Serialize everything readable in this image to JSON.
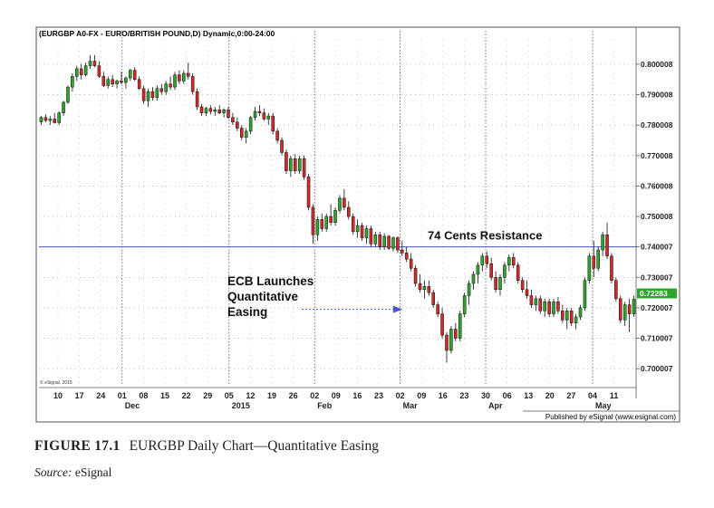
{
  "caption": {
    "figure_label": "FIGURE 17.1",
    "figure_title": "EURGBP Daily Chart—Quantitative Easing",
    "source_label": "Source:",
    "source_value": "eSignal"
  },
  "chart_data": {
    "type": "candlestick",
    "title": "(EURGBP A0-FX - EURO/BRITISH POUND,D) Dynamic,0:00-24:00",
    "credit": "© eSignal, 2015",
    "published_by": "Published by eSignal (www.esignal.com)",
    "price_label": "0.72283",
    "ylim": [
      0.695,
      0.808
    ],
    "yticks": [
      {
        "value": 0.8,
        "label": "0.800008"
      },
      {
        "value": 0.79,
        "label": "0.790008"
      },
      {
        "value": 0.78,
        "label": "0.780008"
      },
      {
        "value": 0.77,
        "label": "0.770008"
      },
      {
        "value": 0.76,
        "label": "0.760008"
      },
      {
        "value": 0.75,
        "label": "0.750008"
      },
      {
        "value": 0.74,
        "label": "0.740007"
      },
      {
        "value": 0.73,
        "label": "0.730007"
      },
      {
        "value": 0.72,
        "label": "0.720007"
      },
      {
        "value": 0.71,
        "label": "0.710007"
      },
      {
        "value": 0.7,
        "label": "0.700007"
      }
    ],
    "xticks": [
      "10",
      "17",
      "24",
      "01",
      "08",
      "15",
      "22",
      "29",
      "05",
      "12",
      "19",
      "26",
      "02",
      "09",
      "16",
      "23",
      "02",
      "09",
      "16",
      "23",
      "30",
      "06",
      "13",
      "20",
      "27",
      "04",
      "11"
    ],
    "months": [
      {
        "label": "Dec",
        "tick_index": 3
      },
      {
        "label": "2015",
        "tick_index": 8
      },
      {
        "label": "Feb",
        "tick_index": 12
      },
      {
        "label": "Mar",
        "tick_index": 16
      },
      {
        "label": "Apr",
        "tick_index": 20
      },
      {
        "label": "May",
        "tick_index": 25
      }
    ],
    "resistance": {
      "value": 0.74,
      "label": "74 Cents Resistance"
    },
    "annotation": {
      "lines": [
        "ECB Launches",
        "Quantitative",
        "Easing"
      ],
      "target_value": 0.7195
    },
    "candles": [
      {
        "o": 0.781,
        "h": 0.783,
        "l": 0.78,
        "c": 0.7825
      },
      {
        "o": 0.7825,
        "h": 0.7835,
        "l": 0.781,
        "c": 0.7815
      },
      {
        "o": 0.7815,
        "h": 0.783,
        "l": 0.78,
        "c": 0.782
      },
      {
        "o": 0.782,
        "h": 0.784,
        "l": 0.7805,
        "c": 0.7808
      },
      {
        "o": 0.7808,
        "h": 0.7845,
        "l": 0.78,
        "c": 0.784
      },
      {
        "o": 0.784,
        "h": 0.788,
        "l": 0.783,
        "c": 0.7875
      },
      {
        "o": 0.7875,
        "h": 0.793,
        "l": 0.787,
        "c": 0.7925
      },
      {
        "o": 0.7925,
        "h": 0.797,
        "l": 0.791,
        "c": 0.796
      },
      {
        "o": 0.796,
        "h": 0.7995,
        "l": 0.7945,
        "c": 0.7985
      },
      {
        "o": 0.7985,
        "h": 0.8,
        "l": 0.795,
        "c": 0.7965
      },
      {
        "o": 0.7965,
        "h": 0.8005,
        "l": 0.796,
        "c": 0.7995
      },
      {
        "o": 0.7995,
        "h": 0.803,
        "l": 0.7985,
        "c": 0.801
      },
      {
        "o": 0.801,
        "h": 0.803,
        "l": 0.799,
        "c": 0.7995
      },
      {
        "o": 0.7995,
        "h": 0.801,
        "l": 0.7955,
        "c": 0.796
      },
      {
        "o": 0.796,
        "h": 0.7975,
        "l": 0.7925,
        "c": 0.793
      },
      {
        "o": 0.793,
        "h": 0.796,
        "l": 0.792,
        "c": 0.795
      },
      {
        "o": 0.795,
        "h": 0.7965,
        "l": 0.7925,
        "c": 0.7935
      },
      {
        "o": 0.7935,
        "h": 0.795,
        "l": 0.792,
        "c": 0.7945
      },
      {
        "o": 0.7945,
        "h": 0.7975,
        "l": 0.7935,
        "c": 0.794
      },
      {
        "o": 0.794,
        "h": 0.796,
        "l": 0.792,
        "c": 0.7955
      },
      {
        "o": 0.7955,
        "h": 0.7985,
        "l": 0.7945,
        "c": 0.798
      },
      {
        "o": 0.798,
        "h": 0.799,
        "l": 0.7945,
        "c": 0.795
      },
      {
        "o": 0.795,
        "h": 0.796,
        "l": 0.7915,
        "c": 0.792
      },
      {
        "o": 0.792,
        "h": 0.793,
        "l": 0.787,
        "c": 0.788
      },
      {
        "o": 0.788,
        "h": 0.792,
        "l": 0.786,
        "c": 0.791
      },
      {
        "o": 0.791,
        "h": 0.7925,
        "l": 0.788,
        "c": 0.789
      },
      {
        "o": 0.789,
        "h": 0.793,
        "l": 0.788,
        "c": 0.792
      },
      {
        "o": 0.792,
        "h": 0.7935,
        "l": 0.79,
        "c": 0.791
      },
      {
        "o": 0.791,
        "h": 0.7945,
        "l": 0.79,
        "c": 0.7935
      },
      {
        "o": 0.7935,
        "h": 0.796,
        "l": 0.7915,
        "c": 0.7925
      },
      {
        "o": 0.7925,
        "h": 0.7975,
        "l": 0.7915,
        "c": 0.7965
      },
      {
        "o": 0.7965,
        "h": 0.798,
        "l": 0.7935,
        "c": 0.7945
      },
      {
        "o": 0.7945,
        "h": 0.798,
        "l": 0.7935,
        "c": 0.797
      },
      {
        "o": 0.797,
        "h": 0.8005,
        "l": 0.795,
        "c": 0.796
      },
      {
        "o": 0.796,
        "h": 0.797,
        "l": 0.79,
        "c": 0.791
      },
      {
        "o": 0.791,
        "h": 0.792,
        "l": 0.785,
        "c": 0.786
      },
      {
        "o": 0.786,
        "h": 0.787,
        "l": 0.783,
        "c": 0.784
      },
      {
        "o": 0.784,
        "h": 0.786,
        "l": 0.783,
        "c": 0.7855
      },
      {
        "o": 0.7855,
        "h": 0.7865,
        "l": 0.7835,
        "c": 0.7845
      },
      {
        "o": 0.7845,
        "h": 0.786,
        "l": 0.783,
        "c": 0.785
      },
      {
        "o": 0.785,
        "h": 0.7865,
        "l": 0.7835,
        "c": 0.784
      },
      {
        "o": 0.784,
        "h": 0.7855,
        "l": 0.7825,
        "c": 0.785
      },
      {
        "o": 0.785,
        "h": 0.786,
        "l": 0.782,
        "c": 0.7825
      },
      {
        "o": 0.7825,
        "h": 0.784,
        "l": 0.78,
        "c": 0.781
      },
      {
        "o": 0.781,
        "h": 0.7825,
        "l": 0.778,
        "c": 0.779
      },
      {
        "o": 0.779,
        "h": 0.78,
        "l": 0.775,
        "c": 0.776
      },
      {
        "o": 0.776,
        "h": 0.779,
        "l": 0.774,
        "c": 0.778
      },
      {
        "o": 0.778,
        "h": 0.783,
        "l": 0.777,
        "c": 0.7825
      },
      {
        "o": 0.7825,
        "h": 0.786,
        "l": 0.7815,
        "c": 0.7845
      },
      {
        "o": 0.7845,
        "h": 0.7865,
        "l": 0.783,
        "c": 0.784
      },
      {
        "o": 0.784,
        "h": 0.7855,
        "l": 0.7815,
        "c": 0.782
      },
      {
        "o": 0.782,
        "h": 0.784,
        "l": 0.78,
        "c": 0.783
      },
      {
        "o": 0.783,
        "h": 0.784,
        "l": 0.777,
        "c": 0.778
      },
      {
        "o": 0.778,
        "h": 0.779,
        "l": 0.774,
        "c": 0.775
      },
      {
        "o": 0.775,
        "h": 0.776,
        "l": 0.77,
        "c": 0.771
      },
      {
        "o": 0.771,
        "h": 0.772,
        "l": 0.764,
        "c": 0.765
      },
      {
        "o": 0.765,
        "h": 0.77,
        "l": 0.763,
        "c": 0.769
      },
      {
        "o": 0.769,
        "h": 0.7705,
        "l": 0.764,
        "c": 0.765
      },
      {
        "o": 0.765,
        "h": 0.77,
        "l": 0.764,
        "c": 0.769
      },
      {
        "o": 0.769,
        "h": 0.77,
        "l": 0.762,
        "c": 0.763
      },
      {
        "o": 0.763,
        "h": 0.764,
        "l": 0.752,
        "c": 0.753
      },
      {
        "o": 0.753,
        "h": 0.754,
        "l": 0.741,
        "c": 0.744
      },
      {
        "o": 0.744,
        "h": 0.75,
        "l": 0.742,
        "c": 0.749
      },
      {
        "o": 0.749,
        "h": 0.751,
        "l": 0.745,
        "c": 0.746
      },
      {
        "o": 0.746,
        "h": 0.751,
        "l": 0.745,
        "c": 0.75
      },
      {
        "o": 0.75,
        "h": 0.754,
        "l": 0.747,
        "c": 0.748
      },
      {
        "o": 0.748,
        "h": 0.753,
        "l": 0.747,
        "c": 0.752
      },
      {
        "o": 0.752,
        "h": 0.757,
        "l": 0.751,
        "c": 0.756
      },
      {
        "o": 0.756,
        "h": 0.759,
        "l": 0.752,
        "c": 0.753
      },
      {
        "o": 0.753,
        "h": 0.755,
        "l": 0.749,
        "c": 0.75
      },
      {
        "o": 0.75,
        "h": 0.751,
        "l": 0.744,
        "c": 0.745
      },
      {
        "o": 0.745,
        "h": 0.749,
        "l": 0.743,
        "c": 0.747
      },
      {
        "o": 0.747,
        "h": 0.748,
        "l": 0.742,
        "c": 0.743
      },
      {
        "o": 0.743,
        "h": 0.747,
        "l": 0.741,
        "c": 0.746
      },
      {
        "o": 0.746,
        "h": 0.747,
        "l": 0.74,
        "c": 0.741
      },
      {
        "o": 0.741,
        "h": 0.745,
        "l": 0.74,
        "c": 0.744
      },
      {
        "o": 0.744,
        "h": 0.745,
        "l": 0.739,
        "c": 0.74
      },
      {
        "o": 0.74,
        "h": 0.7445,
        "l": 0.739,
        "c": 0.7435
      },
      {
        "o": 0.7435,
        "h": 0.744,
        "l": 0.739,
        "c": 0.7395
      },
      {
        "o": 0.7395,
        "h": 0.7435,
        "l": 0.7385,
        "c": 0.743
      },
      {
        "o": 0.743,
        "h": 0.7435,
        "l": 0.738,
        "c": 0.739
      },
      {
        "o": 0.739,
        "h": 0.742,
        "l": 0.737,
        "c": 0.738
      },
      {
        "o": 0.738,
        "h": 0.74,
        "l": 0.735,
        "c": 0.736
      },
      {
        "o": 0.736,
        "h": 0.738,
        "l": 0.732,
        "c": 0.733
      },
      {
        "o": 0.733,
        "h": 0.734,
        "l": 0.727,
        "c": 0.728
      },
      {
        "o": 0.728,
        "h": 0.731,
        "l": 0.725,
        "c": 0.726
      },
      {
        "o": 0.726,
        "h": 0.729,
        "l": 0.723,
        "c": 0.727
      },
      {
        "o": 0.727,
        "h": 0.729,
        "l": 0.724,
        "c": 0.725
      },
      {
        "o": 0.725,
        "h": 0.726,
        "l": 0.72,
        "c": 0.721
      },
      {
        "o": 0.721,
        "h": 0.722,
        "l": 0.717,
        "c": 0.718
      },
      {
        "o": 0.718,
        "h": 0.72,
        "l": 0.71,
        "c": 0.711
      },
      {
        "o": 0.711,
        "h": 0.712,
        "l": 0.702,
        "c": 0.706
      },
      {
        "o": 0.706,
        "h": 0.714,
        "l": 0.705,
        "c": 0.713
      },
      {
        "o": 0.713,
        "h": 0.715,
        "l": 0.709,
        "c": 0.71
      },
      {
        "o": 0.71,
        "h": 0.719,
        "l": 0.709,
        "c": 0.718
      },
      {
        "o": 0.718,
        "h": 0.725,
        "l": 0.717,
        "c": 0.724
      },
      {
        "o": 0.724,
        "h": 0.729,
        "l": 0.721,
        "c": 0.728
      },
      {
        "o": 0.728,
        "h": 0.732,
        "l": 0.726,
        "c": 0.731
      },
      {
        "o": 0.731,
        "h": 0.735,
        "l": 0.728,
        "c": 0.734
      },
      {
        "o": 0.734,
        "h": 0.738,
        "l": 0.732,
        "c": 0.737
      },
      {
        "o": 0.737,
        "h": 0.7385,
        "l": 0.733,
        "c": 0.7345
      },
      {
        "o": 0.7345,
        "h": 0.7365,
        "l": 0.729,
        "c": 0.73
      },
      {
        "o": 0.73,
        "h": 0.732,
        "l": 0.725,
        "c": 0.726
      },
      {
        "o": 0.726,
        "h": 0.731,
        "l": 0.724,
        "c": 0.73
      },
      {
        "o": 0.73,
        "h": 0.735,
        "l": 0.728,
        "c": 0.734
      },
      {
        "o": 0.734,
        "h": 0.7375,
        "l": 0.732,
        "c": 0.7365
      },
      {
        "o": 0.7365,
        "h": 0.738,
        "l": 0.733,
        "c": 0.734
      },
      {
        "o": 0.734,
        "h": 0.735,
        "l": 0.728,
        "c": 0.729
      },
      {
        "o": 0.729,
        "h": 0.73,
        "l": 0.725,
        "c": 0.726
      },
      {
        "o": 0.726,
        "h": 0.729,
        "l": 0.723,
        "c": 0.724
      },
      {
        "o": 0.724,
        "h": 0.726,
        "l": 0.72,
        "c": 0.721
      },
      {
        "o": 0.721,
        "h": 0.724,
        "l": 0.719,
        "c": 0.723
      },
      {
        "o": 0.723,
        "h": 0.724,
        "l": 0.718,
        "c": 0.719
      },
      {
        "o": 0.719,
        "h": 0.723,
        "l": 0.717,
        "c": 0.722
      },
      {
        "o": 0.722,
        "h": 0.723,
        "l": 0.717,
        "c": 0.718
      },
      {
        "o": 0.718,
        "h": 0.723,
        "l": 0.717,
        "c": 0.722
      },
      {
        "o": 0.722,
        "h": 0.7235,
        "l": 0.718,
        "c": 0.719
      },
      {
        "o": 0.719,
        "h": 0.721,
        "l": 0.715,
        "c": 0.716
      },
      {
        "o": 0.716,
        "h": 0.72,
        "l": 0.713,
        "c": 0.719
      },
      {
        "o": 0.719,
        "h": 0.72,
        "l": 0.714,
        "c": 0.715
      },
      {
        "o": 0.715,
        "h": 0.718,
        "l": 0.713,
        "c": 0.717
      },
      {
        "o": 0.717,
        "h": 0.721,
        "l": 0.716,
        "c": 0.72
      },
      {
        "o": 0.72,
        "h": 0.73,
        "l": 0.719,
        "c": 0.729
      },
      {
        "o": 0.729,
        "h": 0.738,
        "l": 0.728,
        "c": 0.737
      },
      {
        "o": 0.737,
        "h": 0.742,
        "l": 0.73,
        "c": 0.733
      },
      {
        "o": 0.733,
        "h": 0.74,
        "l": 0.732,
        "c": 0.739
      },
      {
        "o": 0.739,
        "h": 0.745,
        "l": 0.737,
        "c": 0.744
      },
      {
        "o": 0.744,
        "h": 0.748,
        "l": 0.736,
        "c": 0.737
      },
      {
        "o": 0.737,
        "h": 0.738,
        "l": 0.728,
        "c": 0.729
      },
      {
        "o": 0.729,
        "h": 0.73,
        "l": 0.722,
        "c": 0.723
      },
      {
        "o": 0.723,
        "h": 0.724,
        "l": 0.715,
        "c": 0.716
      },
      {
        "o": 0.716,
        "h": 0.722,
        "l": 0.714,
        "c": 0.721
      },
      {
        "o": 0.721,
        "h": 0.723,
        "l": 0.712,
        "c": 0.718
      },
      {
        "o": 0.718,
        "h": 0.724,
        "l": 0.717,
        "c": 0.7228
      }
    ]
  }
}
